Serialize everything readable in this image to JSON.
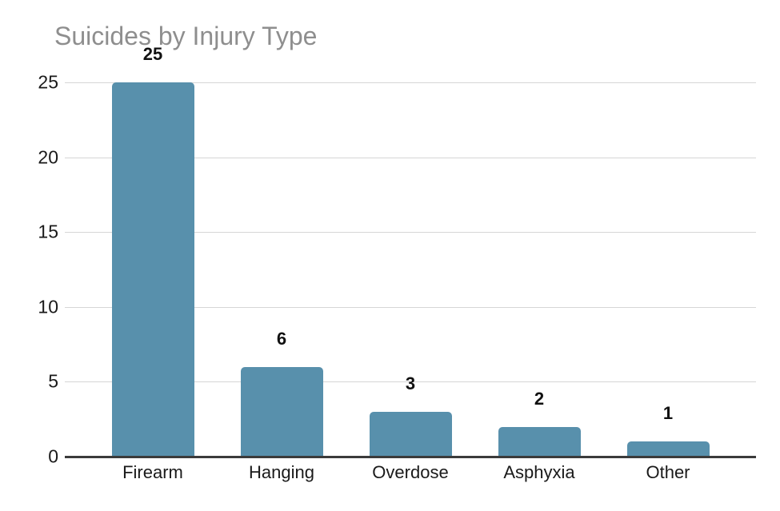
{
  "chart_data": {
    "type": "bar",
    "title": "Suicides by Injury Type",
    "categories": [
      "Firearm",
      "Hanging",
      "Overdose",
      "Asphyxia",
      "Other"
    ],
    "values": [
      25,
      6,
      3,
      2,
      1
    ],
    "bar_labels": [
      "25",
      "6",
      "3",
      "2",
      "1"
    ],
    "xlabel": "",
    "ylabel": "",
    "y_ticks": [
      0,
      5,
      10,
      15,
      20,
      25
    ],
    "ylim": [
      0,
      25
    ],
    "grid": true,
    "legend": "none",
    "colors": {
      "bar": "#5890ac",
      "title": "#8e8e8e",
      "gridline": "#d6d6d6",
      "axis_line": "#3b3b3b",
      "tick_label": "#1a1a1a",
      "value_label": "#111111",
      "category_label": "#1a1a1a",
      "background": "#ffffff"
    }
  }
}
